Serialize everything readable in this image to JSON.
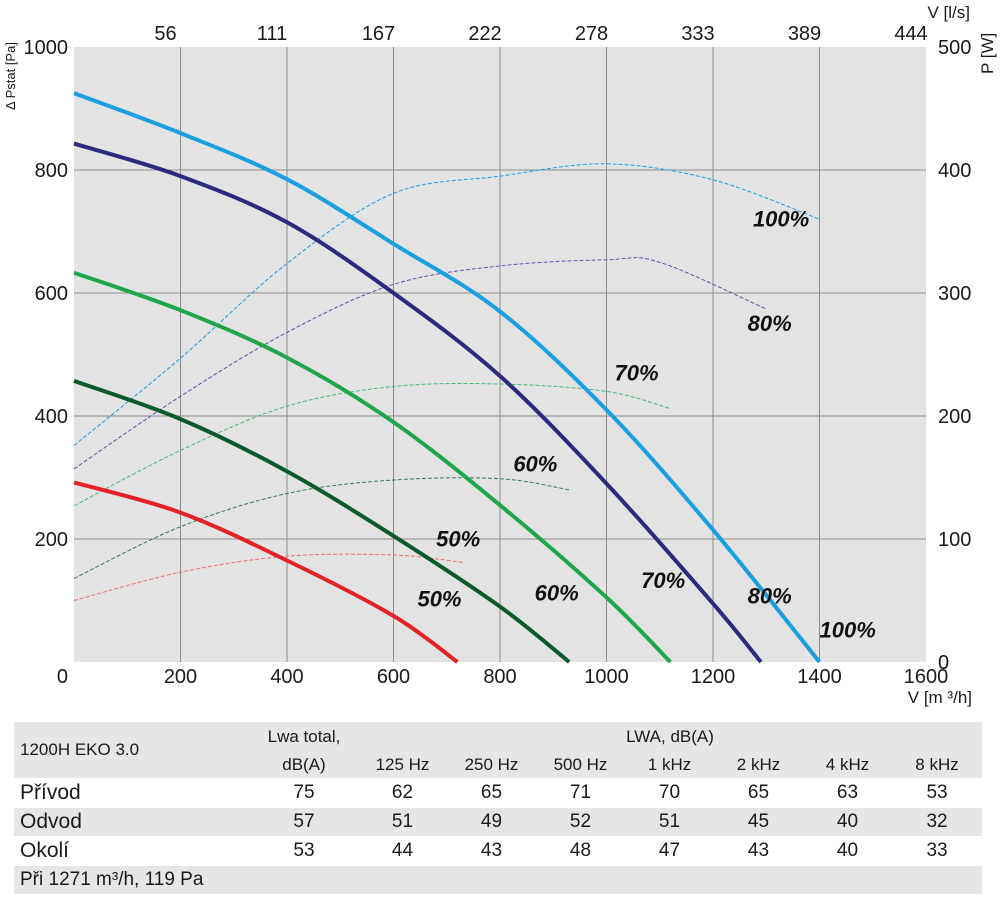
{
  "chart_data": {
    "type": "line",
    "xlabel": "V [m ³/h]",
    "ylabel": "Δ Pstat [Pa]",
    "y2label": "P [W]",
    "x2label": "V [l/s]",
    "xlim": [
      0,
      1600
    ],
    "ylim": [
      0,
      1000
    ],
    "y2lim": [
      0,
      500
    ],
    "x_ticks": [
      "0",
      "200",
      "400",
      "600",
      "800",
      "1000",
      "1200",
      "1400",
      "1600"
    ],
    "y_ticks": [
      "0",
      "200",
      "400",
      "600",
      "800",
      "1000"
    ],
    "y2_ticks": [
      "0",
      "100",
      "200",
      "300",
      "400",
      "500"
    ],
    "x2_ticks": [
      {
        "label": "56",
        "x": 200
      },
      {
        "label": "111",
        "x": 400
      },
      {
        "label": "167",
        "x": 600
      },
      {
        "label": "222",
        "x": 800
      },
      {
        "label": "278",
        "x": 1000
      },
      {
        "label": "333",
        "x": 1200
      },
      {
        "label": "389",
        "x": 1400
      },
      {
        "label": "444",
        "x": 1600
      }
    ],
    "grid": true,
    "pressure_series": [
      {
        "label": "100%",
        "color": "#1a9fe0",
        "x": [
          0,
          200,
          400,
          600,
          800,
          1000,
          1200,
          1400
        ],
        "y": [
          925,
          860,
          785,
          680,
          570,
          410,
          215,
          0
        ]
      },
      {
        "label": "80%",
        "color": "#2b2a7e",
        "x": [
          0,
          200,
          400,
          600,
          800,
          1000,
          1200,
          1290
        ],
        "y": [
          843,
          790,
          715,
          600,
          465,
          290,
          95,
          0
        ]
      },
      {
        "label": "70%",
        "color": "#1fa64a",
        "x": [
          0,
          200,
          400,
          600,
          800,
          1000,
          1120
        ],
        "y": [
          633,
          572,
          495,
          390,
          255,
          105,
          0
        ]
      },
      {
        "label": "60%",
        "color": "#0c5a2c",
        "x": [
          0,
          200,
          400,
          600,
          800,
          930
        ],
        "y": [
          457,
          395,
          310,
          205,
          90,
          0
        ]
      },
      {
        "label": "50%",
        "color": "#e32227",
        "x": [
          0,
          200,
          400,
          600,
          720
        ],
        "y": [
          292,
          243,
          165,
          75,
          0
        ]
      }
    ],
    "power_series": [
      {
        "label": "100%",
        "color": "#1a9fe0",
        "x": [
          0,
          200,
          400,
          600,
          800,
          1000,
          1200,
          1400
        ],
        "y": [
          176,
          247,
          324,
          381,
          395,
          405,
          392,
          360
        ]
      },
      {
        "label": "80%",
        "color": "#5a58a8",
        "x": [
          0,
          200,
          400,
          600,
          800,
          1000,
          1100,
          1300
        ],
        "y": [
          157,
          216,
          268,
          307,
          322,
          327,
          325,
          287
        ]
      },
      {
        "label": "70%",
        "color": "#4cb878",
        "x": [
          0,
          200,
          400,
          600,
          800,
          1000,
          1120
        ],
        "y": [
          127,
          172,
          208,
          224,
          226,
          220,
          206
        ]
      },
      {
        "label": "60%",
        "color": "#3f7a57",
        "x": [
          0,
          200,
          400,
          600,
          800,
          930
        ],
        "y": [
          68,
          110,
          137,
          148,
          149,
          140
        ]
      },
      {
        "label": "50%",
        "color": "#ea6f6f",
        "x": [
          0,
          200,
          400,
          600,
          730
        ],
        "y": [
          50,
          73,
          86,
          87,
          81
        ]
      }
    ],
    "pressure_labels": [
      {
        "text": "100%",
        "x": 1400,
        "y": 40
      },
      {
        "text": "80%",
        "x": 1265,
        "y": 95
      },
      {
        "text": "70%",
        "x": 1065,
        "y": 120
      },
      {
        "text": "60%",
        "x": 865,
        "y": 100
      },
      {
        "text": "50%",
        "x": 645,
        "y": 90
      }
    ],
    "power_labels": [
      {
        "text": "100%",
        "x": 1275,
        "y": 708
      },
      {
        "text": "80%",
        "x": 1265,
        "y": 538
      },
      {
        "text": "70%",
        "x": 1015,
        "y": 458
      },
      {
        "text": "60%",
        "x": 825,
        "y": 310
      },
      {
        "text": "50%",
        "x": 680,
        "y": 188
      }
    ]
  },
  "table": {
    "model": "1200H EKO 3.0",
    "lwa_total_header_1": "Lwa total,",
    "lwa_total_header_2": "dB(A)",
    "lwa_header": "LWA, dB(A)",
    "freq_headers": [
      "125 Hz",
      "250 Hz",
      "500 Hz",
      "1 kHz",
      "2 kHz",
      "4 kHz",
      "8 kHz"
    ],
    "rows": [
      {
        "label": "Přívod",
        "total": "75",
        "values": [
          "62",
          "65",
          "71",
          "70",
          "65",
          "63",
          "53"
        ]
      },
      {
        "label": "Odvod",
        "total": "57",
        "values": [
          "51",
          "49",
          "52",
          "51",
          "45",
          "40",
          "32"
        ]
      },
      {
        "label": "Okolí",
        "total": "53",
        "values": [
          "44",
          "43",
          "48",
          "47",
          "43",
          "40",
          "33"
        ]
      }
    ],
    "footnote": "Při 1271 m³/h, 119 Pa"
  },
  "colors": {
    "plot_background": "#e3e3e3",
    "grid": "#8c8c8c",
    "table_background": "#e6e6e6"
  }
}
